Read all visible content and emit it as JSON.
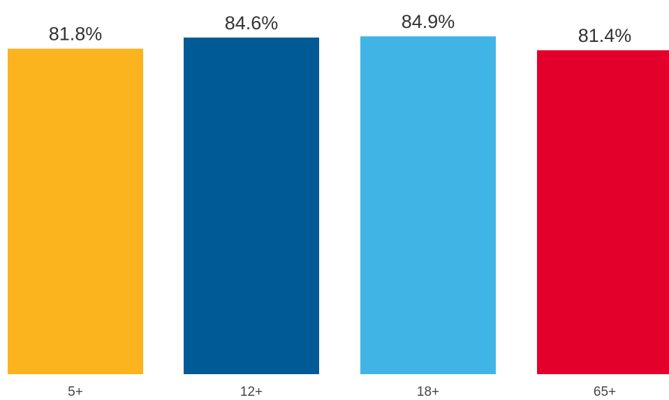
{
  "chart_data": {
    "type": "bar",
    "categories": [
      "5+",
      "12+",
      "18+",
      "65+"
    ],
    "values": [
      81.8,
      84.6,
      84.9,
      81.4
    ],
    "data_labels": [
      "81.8%",
      "84.6%",
      "84.9%",
      "81.4%"
    ],
    "colors": [
      "#FBB41E",
      "#005A96",
      "#41B4E6",
      "#E3002B"
    ],
    "ylim": [
      0,
      100
    ],
    "grid": false,
    "legend": "none",
    "title": "",
    "xlabel": "",
    "ylabel": ""
  }
}
